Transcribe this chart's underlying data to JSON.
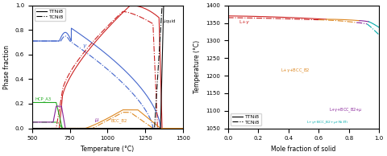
{
  "left": {
    "xlabel": "Temperature (°C)",
    "ylabel": "Phase fraction",
    "xlim": [
      500,
      1500
    ],
    "ylim": [
      0,
      1.0
    ],
    "xticks": [
      500,
      750,
      1000,
      1250,
      1500
    ],
    "yticks": [
      0.0,
      0.2,
      0.4,
      0.6,
      0.8,
      1.0
    ]
  },
  "right": {
    "xlabel": "Mole fraction of solid",
    "ylabel": "Temperature (°C)",
    "xlim": [
      0.0,
      1.0
    ],
    "ylim": [
      1050,
      1400
    ],
    "xticks": [
      0.0,
      0.2,
      0.4,
      0.6,
      0.8,
      1.0
    ],
    "yticks": [
      1050,
      1100,
      1150,
      1200,
      1250,
      1300,
      1350,
      1400
    ]
  },
  "colors": {
    "gamma": "#4466cc",
    "red": "#cc2222",
    "green": "#22aa22",
    "purple": "#882299",
    "orange": "#dd8822",
    "black": "#111111",
    "cyan": "#00aaaa"
  },
  "lw": 0.8
}
